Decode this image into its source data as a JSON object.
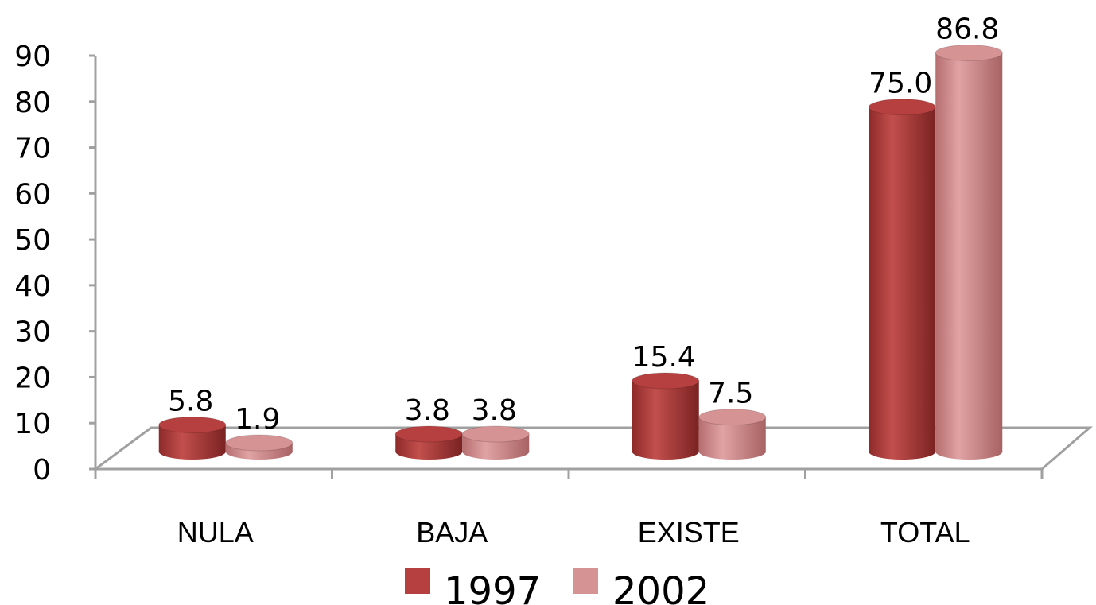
{
  "chart_data": {
    "type": "bar",
    "categories": [
      "NULA",
      "BAJA",
      "EXISTE",
      "TOTAL"
    ],
    "series": [
      {
        "name": "1997",
        "values": [
          5.8,
          3.8,
          15.4,
          75.0
        ],
        "labels": [
          "5.8",
          "3.8",
          "15.4",
          "75.0"
        ],
        "color": "#b5403f"
      },
      {
        "name": "2002",
        "values": [
          1.9,
          3.8,
          7.5,
          86.8
        ],
        "labels": [
          "1.9",
          "3.8",
          "7.5",
          "86.8"
        ],
        "color": "#d69394"
      }
    ],
    "ylim": [
      0,
      90
    ],
    "yticks": [
      "0",
      "10",
      "20",
      "30",
      "40",
      "50",
      "60",
      "70",
      "80",
      "90"
    ],
    "grid": false,
    "legend_position": "bottom",
    "style": "3d-cylinder"
  }
}
